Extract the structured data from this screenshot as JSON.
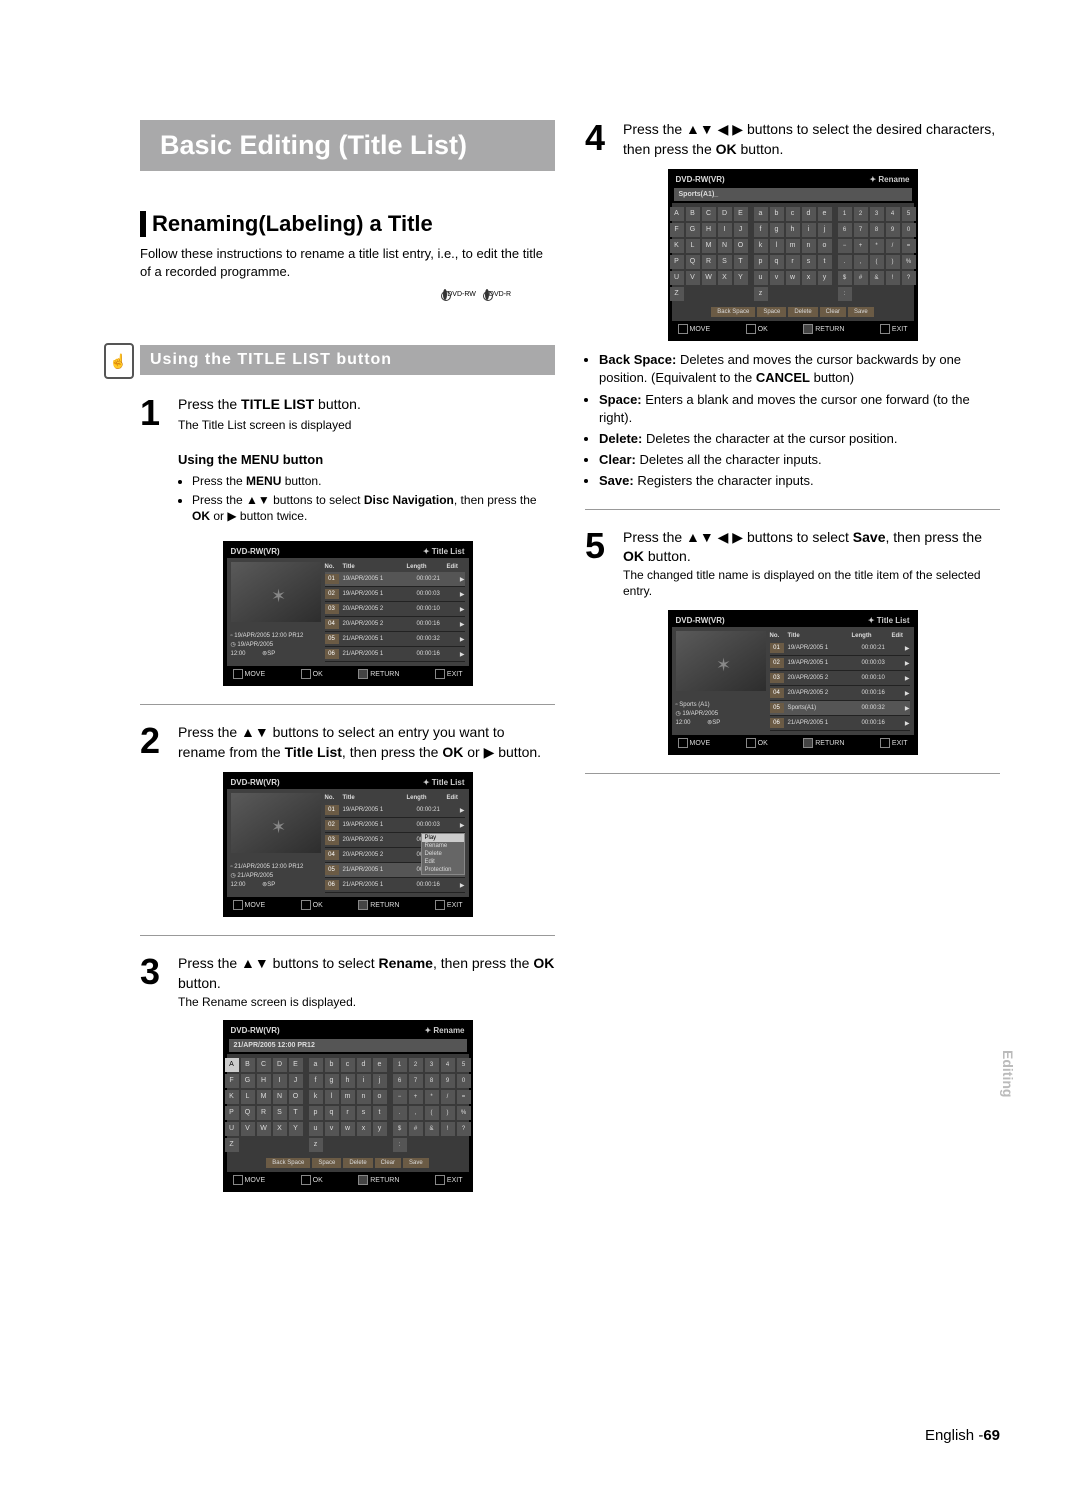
{
  "page_title": "Basic Editing (Title List)",
  "section": {
    "title": "Renaming(Labeling) a Title",
    "intro": "Follow these instructions to rename a title list entry, i.e., to edit the title of a recorded programme."
  },
  "disc_icons": [
    "DVD-RW",
    "DVD-R"
  ],
  "subheader_icon": "☝",
  "subheader": "Using the TITLE LIST button",
  "step1": {
    "num": "1",
    "line1_a": "Press the ",
    "line1_b": "TITLE LIST",
    "line1_c": " button.",
    "line2": "The Title List screen is displayed",
    "sub": "Using the MENU button",
    "bullets": [
      "Press the <b>MENU</b> button.",
      "Press the <span class='arrow'>▲▼</span> buttons to select <b>Disc Navigation</b>, then press the <b>OK</b> or <span class='arrow'>▶</span> button twice."
    ]
  },
  "step2": {
    "num": "2",
    "html": "Press the <span class='arrow'>▲▼</span> buttons to select an entry you want to rename from the <b>Title List</b>, then press the <b>OK</b> or <span class='arrow'>▶</span> button."
  },
  "step3": {
    "num": "3",
    "html": "Press the <span class='arrow'>▲▼</span> buttons to select <b>Rename</b>, then press the <b>OK</b> button.",
    "note": "The Rename screen is displayed."
  },
  "step4": {
    "num": "4",
    "html": "Press the <span class='arrow'>▲▼ ◀ ▶</span> buttons to select the desired characters, then press the <b>OK</b> button."
  },
  "step5": {
    "num": "5",
    "html": "Press the <span class='arrow'>▲▼ ◀ ▶</span> buttons to select <b>Save</b>, then press the <b>OK</b> button.",
    "note": "The changed title name is displayed on the title item of the selected entry."
  },
  "kb_funcs": [
    "<b>Back Space:</b> Deletes and moves the cursor backwards by one position. (Equivalent to the <b>CANCEL</b> button)",
    "<b>Space:</b> Enters a blank and moves the cursor one forward (to the right).",
    "<b>Delete:</b> Deletes the character at the cursor position.",
    "<b>Clear:</b> Deletes all the character inputs.",
    "<b>Save:</b> Registers the character inputs."
  ],
  "mini": {
    "device": "DVD-RW(VR)",
    "title_list": "Title List",
    "rename": "Rename",
    "cols": [
      "No.",
      "Title",
      "Length",
      "Edit"
    ],
    "rows": [
      {
        "n": "01",
        "t": "19/APR/2005 1",
        "l": "00:00:21",
        "a": "▶"
      },
      {
        "n": "02",
        "t": "19/APR/2005 1",
        "l": "00:00:03",
        "a": "▶"
      },
      {
        "n": "03",
        "t": "20/APR/2005 2",
        "l": "00:00:10",
        "a": "▶"
      },
      {
        "n": "04",
        "t": "20/APR/2005 2",
        "l": "00:00:16",
        "a": "▶"
      },
      {
        "n": "05",
        "t": "21/APR/2005 1",
        "l": "00:00:32",
        "a": "▶"
      },
      {
        "n": "06",
        "t": "21/APR/2005 1",
        "l": "00:00:16",
        "a": "▶"
      }
    ],
    "rows5": [
      {
        "n": "01",
        "t": "19/APR/2005 1",
        "l": "00:00:21",
        "a": "▶"
      },
      {
        "n": "02",
        "t": "19/APR/2005 1",
        "l": "00:00:03",
        "a": "▶"
      },
      {
        "n": "03",
        "t": "20/APR/2005 2",
        "l": "00:00:10",
        "a": "▶"
      },
      {
        "n": "04",
        "t": "20/APR/2005 2",
        "l": "00:00:16",
        "a": "▶"
      },
      {
        "n": "05",
        "t": "Sports(A1)",
        "l": "00:00:32",
        "a": "▶"
      },
      {
        "n": "06",
        "t": "21/APR/2005 1",
        "l": "00:00:16",
        "a": "▶"
      }
    ],
    "context_menu": [
      "Play",
      "Rename",
      "Delete",
      "Edit",
      "Protection"
    ],
    "context_sel": 0,
    "meta1": {
      "l1": "19/APR/2005 12:00 PR12",
      "l2": "19/APR/2005",
      "l3": "12:00",
      "sp": "SP"
    },
    "meta2": {
      "l1": "21/APR/2005 12:00 PR12",
      "l2": "21/APR/2005",
      "l3": "12:00",
      "sp": "SP"
    },
    "meta5": {
      "l1": "Sports (A1)",
      "l2": "19/APR/2005",
      "l3": "12:00",
      "sp": "SP"
    },
    "rename_name1": "21/APR/2005 12:00 PR12",
    "rename_name2": "Sports(A1)_",
    "upper": [
      "A",
      "B",
      "C",
      "D",
      "E",
      "F",
      "G",
      "H",
      "I",
      "J",
      "K",
      "L",
      "M",
      "N",
      "O",
      "P",
      "Q",
      "R",
      "S",
      "T",
      "U",
      "V",
      "W",
      "X",
      "Y",
      "Z"
    ],
    "lower": [
      "a",
      "b",
      "c",
      "d",
      "e",
      "f",
      "g",
      "h",
      "i",
      "j",
      "k",
      "l",
      "m",
      "n",
      "o",
      "p",
      "q",
      "r",
      "s",
      "t",
      "u",
      "v",
      "w",
      "x",
      "y",
      "z"
    ],
    "nums": [
      "1",
      "2",
      "3",
      "4",
      "5",
      "6",
      "7",
      "8",
      "9",
      "0",
      "−",
      "+",
      "*",
      "/",
      "=",
      ".",
      ",",
      "(",
      ")",
      "%",
      "$",
      "#",
      "&",
      "!",
      "?",
      ":"
    ],
    "kb_btns": [
      "Back Space",
      "Space",
      "Delete",
      "Clear",
      "Save"
    ],
    "foot": {
      "move": "MOVE",
      "ok": "OK",
      "ret": "RETURN",
      "exit": "EXIT"
    }
  },
  "side_tab": "Editing",
  "footer": {
    "lang": "English -",
    "page": "69"
  }
}
